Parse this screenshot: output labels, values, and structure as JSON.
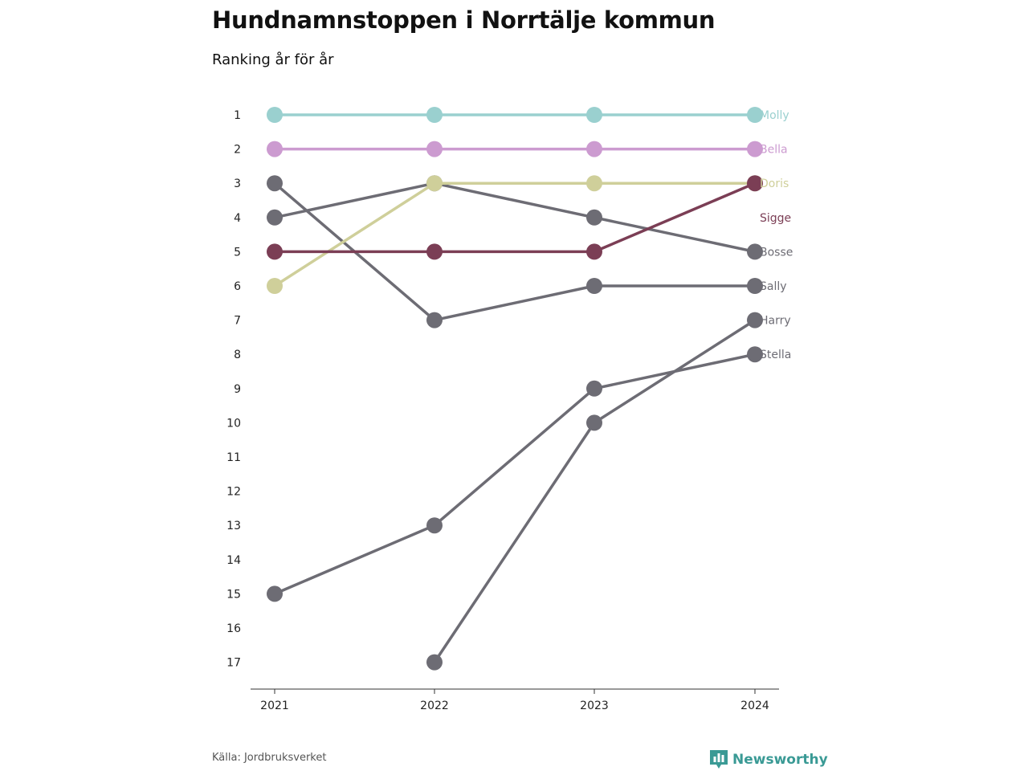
{
  "header": {
    "title": "Hundnamnstoppen i Norrtälje kommun",
    "subtitle": "Ranking år för år"
  },
  "footer": {
    "source": "Källa: Jordbruksverket",
    "brand": "Newsworthy",
    "brand_icon": "newsworthy-logo-icon"
  },
  "chart_data": {
    "type": "line",
    "title": "Hundnamnstoppen i Norrtälje kommun",
    "subtitle": "Ranking år för år",
    "x": [
      "2021",
      "2022",
      "2023",
      "2024"
    ],
    "y_ticks": [
      "1",
      "2",
      "3",
      "4",
      "5",
      "6",
      "7",
      "8",
      "9",
      "10",
      "11",
      "12",
      "13",
      "14",
      "15",
      "16",
      "17"
    ],
    "ylim": [
      1,
      17
    ],
    "y_reversed": true,
    "grid": false,
    "series": [
      {
        "name": "Molly",
        "color": "#9ad0cf",
        "values": [
          1,
          1,
          1,
          1
        ]
      },
      {
        "name": "Bella",
        "color": "#cc9bd0",
        "values": [
          2,
          2,
          2,
          2
        ]
      },
      {
        "name": "Doris",
        "color": "#cfcf9a",
        "values": [
          6,
          3,
          3,
          3
        ]
      },
      {
        "name": "Sigge",
        "color": "#7b3e55",
        "values": [
          5,
          5,
          5,
          3
        ]
      },
      {
        "name": "Bosse",
        "color": "#6d6c74",
        "values": [
          4,
          3,
          4,
          5
        ]
      },
      {
        "name": "Sally",
        "color": "#6d6c74",
        "values": [
          3,
          7,
          6,
          6
        ]
      },
      {
        "name": "Harry",
        "color": "#6d6c74",
        "values": [
          null,
          17,
          10,
          7
        ]
      },
      {
        "name": "Stella",
        "color": "#6d6c74",
        "values": [
          15,
          13,
          9,
          8
        ]
      }
    ]
  }
}
